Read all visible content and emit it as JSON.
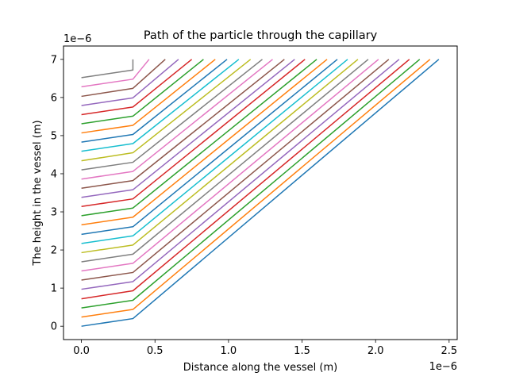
{
  "chart_data": {
    "type": "line",
    "title": "Path of the particle through the capillary",
    "xlabel": "Distance along the vessel (m)",
    "ylabel": "The height in the vessel (m)",
    "x_offset_label": "1e−6",
    "y_offset_label": "1e−6",
    "x_scale": 1e-06,
    "y_scale": 1e-06,
    "xlim": [
      -0.122,
      2.555
    ],
    "ylim": [
      -0.35,
      7.35
    ],
    "x_ticks": [
      0.0,
      0.5,
      1.0,
      1.5,
      2.0,
      2.5
    ],
    "x_tick_labels": [
      "0.0",
      "0.5",
      "1.0",
      "1.5",
      "2.0",
      "2.5"
    ],
    "y_ticks": [
      0,
      1,
      2,
      3,
      4,
      5,
      6,
      7
    ],
    "y_tick_labels": [
      "0",
      "1",
      "2",
      "3",
      "4",
      "5",
      "6",
      "7"
    ],
    "grid": false,
    "legend": "none",
    "series_count": 28,
    "series": [
      {
        "x": [
          0.0,
          0.35,
          2.43
        ],
        "y": [
          0.0,
          0.2,
          7.0
        ]
      },
      {
        "x": [
          0.0,
          0.35,
          2.37
        ],
        "y": [
          0.24,
          0.44,
          7.0
        ]
      },
      {
        "x": [
          0.0,
          0.35,
          2.3
        ],
        "y": [
          0.48,
          0.68,
          7.0
        ]
      },
      {
        "x": [
          0.0,
          0.35,
          2.23
        ],
        "y": [
          0.72,
          0.93,
          7.0
        ]
      },
      {
        "x": [
          0.0,
          0.35,
          2.16
        ],
        "y": [
          0.97,
          1.17,
          7.0
        ]
      },
      {
        "x": [
          0.0,
          0.35,
          2.09
        ],
        "y": [
          1.21,
          1.41,
          7.0
        ]
      },
      {
        "x": [
          0.0,
          0.35,
          2.02
        ],
        "y": [
          1.45,
          1.65,
          7.0
        ]
      },
      {
        "x": [
          0.0,
          0.35,
          1.95
        ],
        "y": [
          1.69,
          1.89,
          7.0
        ]
      },
      {
        "x": [
          0.0,
          0.35,
          1.88
        ],
        "y": [
          1.93,
          2.13,
          7.0
        ]
      },
      {
        "x": [
          0.0,
          0.35,
          1.81
        ],
        "y": [
          2.17,
          2.37,
          7.0
        ]
      },
      {
        "x": [
          0.0,
          0.35,
          1.74
        ],
        "y": [
          2.41,
          2.61,
          7.0
        ]
      },
      {
        "x": [
          0.0,
          0.35,
          1.67
        ],
        "y": [
          2.66,
          2.86,
          7.0
        ]
      },
      {
        "x": [
          0.0,
          0.35,
          1.6
        ],
        "y": [
          2.9,
          3.1,
          7.0
        ]
      },
      {
        "x": [
          0.0,
          0.35,
          1.52
        ],
        "y": [
          3.14,
          3.34,
          7.0
        ]
      },
      {
        "x": [
          0.0,
          0.35,
          1.45
        ],
        "y": [
          3.38,
          3.58,
          7.0
        ]
      },
      {
        "x": [
          0.0,
          0.35,
          1.38
        ],
        "y": [
          3.62,
          3.82,
          7.0
        ]
      },
      {
        "x": [
          0.0,
          0.35,
          1.3
        ],
        "y": [
          3.86,
          4.06,
          7.0
        ]
      },
      {
        "x": [
          0.0,
          0.35,
          1.23
        ],
        "y": [
          4.1,
          4.3,
          7.0
        ]
      },
      {
        "x": [
          0.0,
          0.35,
          1.15
        ],
        "y": [
          4.34,
          4.55,
          7.0
        ]
      },
      {
        "x": [
          0.0,
          0.35,
          1.07
        ],
        "y": [
          4.59,
          4.79,
          7.0
        ]
      },
      {
        "x": [
          0.0,
          0.35,
          0.99
        ],
        "y": [
          4.83,
          5.03,
          7.0
        ]
      },
      {
        "x": [
          0.0,
          0.35,
          0.91
        ],
        "y": [
          5.07,
          5.27,
          7.0
        ]
      },
      {
        "x": [
          0.0,
          0.35,
          0.83
        ],
        "y": [
          5.31,
          5.51,
          7.0
        ]
      },
      {
        "x": [
          0.0,
          0.35,
          0.75
        ],
        "y": [
          5.55,
          5.75,
          7.0
        ]
      },
      {
        "x": [
          0.0,
          0.35,
          0.66
        ],
        "y": [
          5.79,
          5.99,
          7.0
        ]
      },
      {
        "x": [
          0.0,
          0.35,
          0.57
        ],
        "y": [
          6.03,
          6.24,
          7.0
        ]
      },
      {
        "x": [
          0.0,
          0.35,
          0.46
        ],
        "y": [
          6.28,
          6.48,
          7.0
        ]
      },
      {
        "x": [
          0.0,
          0.35,
          0.35
        ],
        "y": [
          6.52,
          6.72,
          7.0
        ]
      }
    ],
    "colors": [
      "#1f77b4",
      "#ff7f0e",
      "#2ca02c",
      "#d62728",
      "#9467bd",
      "#8c564b",
      "#e377c2",
      "#7f7f7f",
      "#bcbd22",
      "#17becf"
    ]
  }
}
